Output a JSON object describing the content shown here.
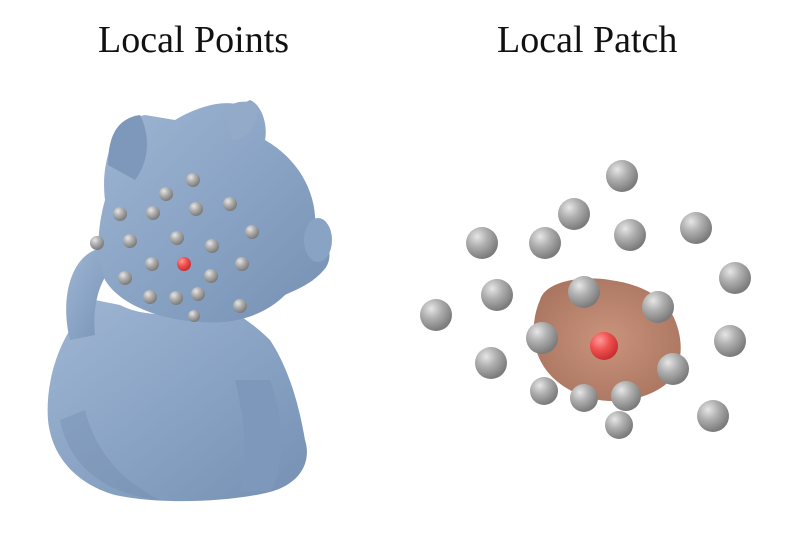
{
  "titles": {
    "left": "Local Points",
    "right": "Local Patch"
  },
  "colors": {
    "mesh": "#8ea8c7",
    "mesh_shadow": "#6f8aab",
    "point_gray": "#9a9a9a",
    "center_point": "#ee4b4b",
    "patch_surface": "#b98773"
  }
}
